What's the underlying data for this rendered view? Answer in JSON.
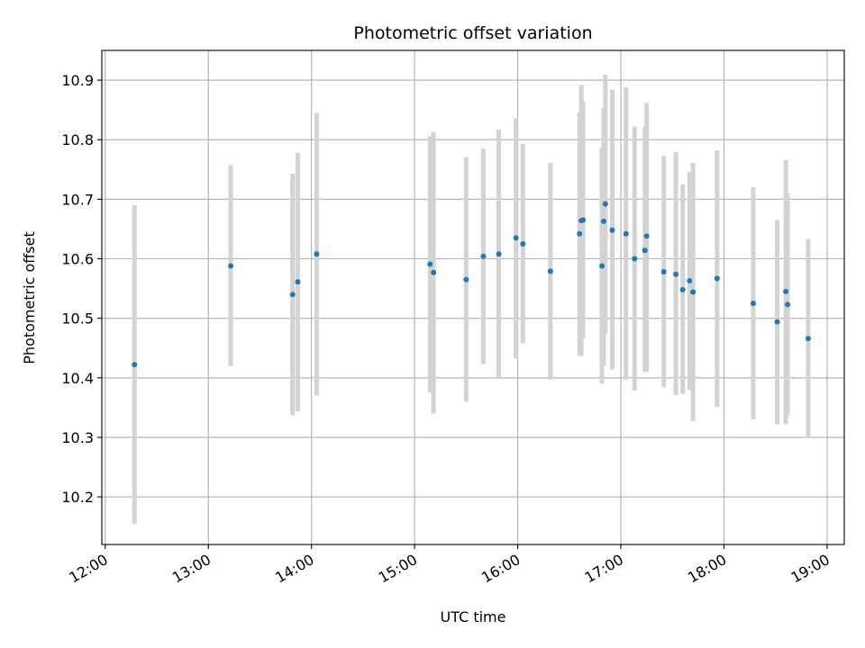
{
  "chart_data": {
    "type": "scatter",
    "title": "Photometric offset variation",
    "xlabel": "UTC time",
    "ylabel": "Photometric offset",
    "x_ticks": [
      "12:00",
      "13:00",
      "14:00",
      "15:00",
      "16:00",
      "17:00",
      "18:00",
      "19:00"
    ],
    "y_ticks": [
      10.2,
      10.3,
      10.4,
      10.5,
      10.6,
      10.7,
      10.8,
      10.9
    ],
    "xlim": [
      "11:58",
      "19:10"
    ],
    "ylim": [
      10.12,
      10.95
    ],
    "grid": true,
    "points": [
      {
        "x": "12:17",
        "y": 10.422,
        "ylow": 10.155,
        "yhigh": 10.69
      },
      {
        "x": "13:13",
        "y": 10.588,
        "ylow": 10.42,
        "yhigh": 10.757
      },
      {
        "x": "13:49",
        "y": 10.54,
        "ylow": 10.337,
        "yhigh": 10.743
      },
      {
        "x": "13:52",
        "y": 10.561,
        "ylow": 10.344,
        "yhigh": 10.778
      },
      {
        "x": "14:03",
        "y": 10.608,
        "ylow": 10.37,
        "yhigh": 10.845
      },
      {
        "x": "15:09",
        "y": 10.591,
        "ylow": 10.375,
        "yhigh": 10.806
      },
      {
        "x": "15:11",
        "y": 10.577,
        "ylow": 10.34,
        "yhigh": 10.813
      },
      {
        "x": "15:30",
        "y": 10.565,
        "ylow": 10.36,
        "yhigh": 10.771
      },
      {
        "x": "15:40",
        "y": 10.604,
        "ylow": 10.423,
        "yhigh": 10.785
      },
      {
        "x": "15:49",
        "y": 10.608,
        "ylow": 10.398,
        "yhigh": 10.817
      },
      {
        "x": "15:59",
        "y": 10.635,
        "ylow": 10.432,
        "yhigh": 10.836
      },
      {
        "x": "16:03",
        "y": 10.625,
        "ylow": 10.458,
        "yhigh": 10.793
      },
      {
        "x": "16:19",
        "y": 10.579,
        "ylow": 10.397,
        "yhigh": 10.761
      },
      {
        "x": "16:36",
        "y": 10.642,
        "ylow": 10.437,
        "yhigh": 10.846
      },
      {
        "x": "16:37",
        "y": 10.664,
        "ylow": 10.437,
        "yhigh": 10.892
      },
      {
        "x": "16:38",
        "y": 10.665,
        "ylow": 10.467,
        "yhigh": 10.864
      },
      {
        "x": "16:49",
        "y": 10.588,
        "ylow": 10.39,
        "yhigh": 10.787
      },
      {
        "x": "16:50",
        "y": 10.663,
        "ylow": 10.42,
        "yhigh": 10.853
      },
      {
        "x": "16:51",
        "y": 10.692,
        "ylow": 10.474,
        "yhigh": 10.909
      },
      {
        "x": "16:55",
        "y": 10.648,
        "ylow": 10.414,
        "yhigh": 10.884
      },
      {
        "x": "17:03",
        "y": 10.642,
        "ylow": 10.397,
        "yhigh": 10.888
      },
      {
        "x": "17:08",
        "y": 10.6,
        "ylow": 10.379,
        "yhigh": 10.822
      },
      {
        "x": "17:14",
        "y": 10.614,
        "ylow": 10.41,
        "yhigh": 10.822
      },
      {
        "x": "17:15",
        "y": 10.638,
        "ylow": 10.41,
        "yhigh": 10.862
      },
      {
        "x": "17:25",
        "y": 10.578,
        "ylow": 10.384,
        "yhigh": 10.773
      },
      {
        "x": "17:32",
        "y": 10.574,
        "ylow": 10.371,
        "yhigh": 10.779
      },
      {
        "x": "17:36",
        "y": 10.548,
        "ylow": 10.373,
        "yhigh": 10.725
      },
      {
        "x": "17:40",
        "y": 10.563,
        "ylow": 10.38,
        "yhigh": 10.746
      },
      {
        "x": "17:42",
        "y": 10.544,
        "ylow": 10.327,
        "yhigh": 10.761
      },
      {
        "x": "17:56",
        "y": 10.567,
        "ylow": 10.351,
        "yhigh": 10.782
      },
      {
        "x": "18:17",
        "y": 10.525,
        "ylow": 10.33,
        "yhigh": 10.72
      },
      {
        "x": "18:31",
        "y": 10.494,
        "ylow": 10.322,
        "yhigh": 10.665
      },
      {
        "x": "18:36",
        "y": 10.545,
        "ylow": 10.322,
        "yhigh": 10.766
      },
      {
        "x": "18:37",
        "y": 10.523,
        "ylow": 10.337,
        "yhigh": 10.71
      },
      {
        "x": "18:49",
        "y": 10.466,
        "ylow": 10.3,
        "yhigh": 10.633
      }
    ],
    "colors": {
      "points": "#1f77b4",
      "errorbars": "#d3d3d3",
      "grid": "#b0b0b0"
    }
  }
}
